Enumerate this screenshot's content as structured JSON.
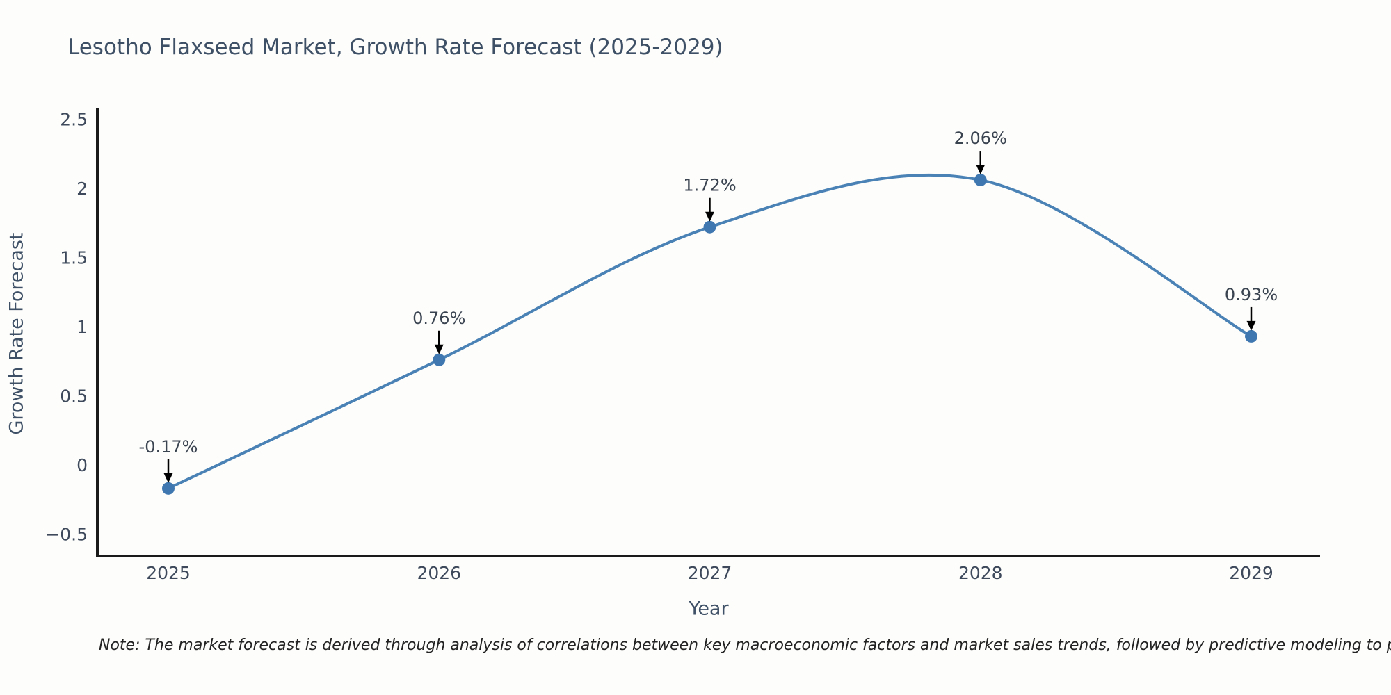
{
  "page": {
    "note": "Note: The market forecast is derived through analysis of correlations between key macroeconomic factors and market sales trends, followed by predictive modeling to project future sales"
  },
  "chart_data": {
    "type": "line",
    "title": "Lesotho Flaxseed Market, Growth Rate Forecast (2025-2029)",
    "xlabel": "Year",
    "ylabel": "Growth Rate Forecast",
    "categories": [
      "2025",
      "2026",
      "2027",
      "2028",
      "2029"
    ],
    "series": [
      {
        "name": "Growth Rate Forecast",
        "values": [
          -0.17,
          0.76,
          1.72,
          2.06,
          0.93
        ],
        "point_labels": [
          "-0.17%",
          "0.76%",
          "1.72%",
          "2.06%",
          "0.93%"
        ]
      }
    ],
    "yticks": [
      -0.5,
      0,
      0.5,
      1,
      1.5,
      2,
      2.5
    ],
    "ylim": [
      -0.67,
      2.58
    ],
    "grid": false,
    "legend": false
  },
  "colors": {
    "background": "#fdfdfb",
    "line": "#4a82b6",
    "marker": "#3f78b0",
    "arrow": "#000000",
    "spine": "#1a1a1a",
    "tick_text": "#3e4a5c",
    "annotation_text": "#3a4350",
    "title_text": "#3e5066"
  }
}
